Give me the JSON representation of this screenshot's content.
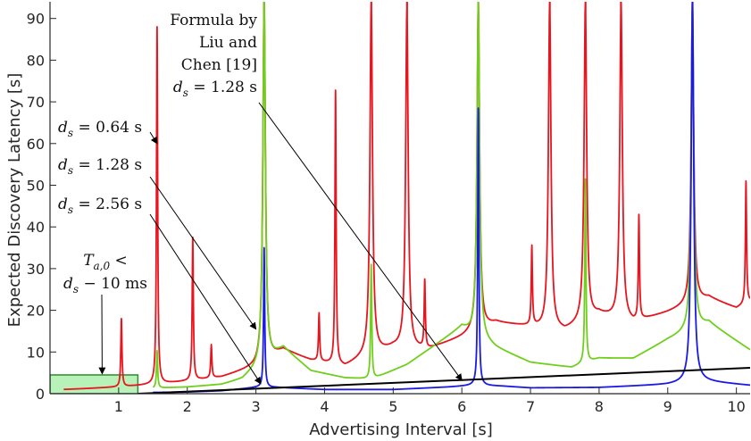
{
  "chart_data": {
    "type": "line",
    "xlabel": "Advertising Interval [s]",
    "ylabel": "Expected Discovery Latency [s]",
    "xlim": [
      0,
      10.2
    ],
    "ylim": [
      0,
      94
    ],
    "x_ticks": [
      1,
      2,
      3,
      4,
      5,
      6,
      7,
      8,
      9,
      10
    ],
    "y_ticks": [
      0,
      10,
      20,
      30,
      40,
      50,
      60,
      70,
      80,
      90
    ],
    "grid": false,
    "colors": {
      "red": "#e8141e",
      "green": "#6fcf1c",
      "blue": "#1a1ae6",
      "black": "#000000",
      "highlight_fill": "#b8f2b8",
      "highlight_stroke": "#2e8b2e"
    },
    "series": [
      {
        "color": "red",
        "base": [
          [
            0.2,
            1.0
          ],
          [
            0.5,
            1.2
          ],
          [
            1.0,
            1.6
          ],
          [
            1.5,
            2.2
          ],
          [
            2.0,
            3.0
          ],
          [
            2.5,
            4.0
          ],
          [
            3.0,
            6.5
          ],
          [
            3.4,
            10.5
          ],
          [
            3.8,
            8.0
          ],
          [
            4.3,
            6.5
          ],
          [
            4.6,
            9.0
          ],
          [
            5.0,
            11.0
          ],
          [
            5.5,
            10.5
          ],
          [
            6.0,
            13.5
          ],
          [
            6.5,
            17.0
          ],
          [
            7.0,
            16.0
          ],
          [
            7.5,
            15.0
          ],
          [
            8.0,
            19.0
          ],
          [
            8.5,
            17.0
          ],
          [
            9.0,
            19.5
          ],
          [
            9.6,
            23.0
          ],
          [
            10.0,
            20.5
          ],
          [
            10.2,
            22.0
          ]
        ],
        "spikes": [
          [
            1.04,
            18.0
          ],
          [
            1.56,
            88.0
          ],
          [
            2.08,
            37.5
          ],
          [
            2.35,
            11.7
          ],
          [
            3.12,
            94.0
          ],
          [
            3.92,
            19.3
          ],
          [
            4.16,
            72.8
          ],
          [
            4.68,
            94.0
          ],
          [
            5.2,
            92.5
          ],
          [
            5.46,
            27.5
          ],
          [
            6.24,
            94.0
          ],
          [
            7.02,
            35.3
          ],
          [
            7.28,
            94.0
          ],
          [
            7.8,
            94.0
          ],
          [
            8.32,
            94.0
          ],
          [
            8.58,
            43.0
          ],
          [
            9.36,
            94.0
          ],
          [
            10.14,
            51.0
          ]
        ]
      },
      {
        "color": "green",
        "base": [
          [
            1.5,
            1.3
          ],
          [
            2.0,
            1.6
          ],
          [
            2.5,
            2.2
          ],
          [
            2.8,
            3.5
          ],
          [
            3.4,
            11.0
          ],
          [
            3.8,
            5.5
          ],
          [
            4.3,
            3.8
          ],
          [
            4.7,
            3.5
          ],
          [
            5.2,
            7.0
          ],
          [
            6.0,
            16.0
          ],
          [
            6.5,
            11.0
          ],
          [
            7.0,
            7.5
          ],
          [
            7.6,
            6.3
          ],
          [
            8.0,
            8.5
          ],
          [
            8.5,
            8.5
          ],
          [
            9.0,
            13.0
          ],
          [
            9.6,
            17.0
          ],
          [
            10.2,
            10.5
          ]
        ],
        "spikes": [
          [
            1.56,
            10.3
          ],
          [
            3.12,
            94.0
          ],
          [
            4.68,
            31.0
          ],
          [
            6.24,
            94.0
          ],
          [
            7.8,
            51.5
          ],
          [
            9.36,
            94.0
          ]
        ]
      },
      {
        "color": "blue",
        "base": [
          [
            1.5,
            0.3
          ],
          [
            2.0,
            0.4
          ],
          [
            2.5,
            0.7
          ],
          [
            3.0,
            1.5
          ],
          [
            3.3,
            1.5
          ],
          [
            4.0,
            1.0
          ],
          [
            5.0,
            1.0
          ],
          [
            5.8,
            1.6
          ],
          [
            6.2,
            2.0
          ],
          [
            6.6,
            1.8
          ],
          [
            7.0,
            1.4
          ],
          [
            8.0,
            1.5
          ],
          [
            9.0,
            2.2
          ],
          [
            9.5,
            3.0
          ],
          [
            10.2,
            2.0
          ]
        ],
        "spikes": [
          [
            3.12,
            35.0
          ],
          [
            6.24,
            68.5
          ],
          [
            9.36,
            94.0
          ]
        ]
      },
      {
        "name": "Formula by Liu and Chen [19]",
        "color": "black",
        "points": [
          [
            1.28,
            0.0
          ],
          [
            10.2,
            6.2
          ]
        ]
      }
    ],
    "highlight_region": {
      "x": [
        0.0,
        1.28
      ],
      "y": [
        0.0,
        4.5
      ]
    },
    "annotations": [
      {
        "lines": [
          "Formula by",
          "Liu and",
          "Chen [19]",
          "d_s = 1.28 s"
        ],
        "target": [
          6.0,
          3.2
        ]
      },
      {
        "lines": [
          "d_s = 0.64 s"
        ],
        "target": [
          1.56,
          60.0
        ]
      },
      {
        "lines": [
          "d_s = 1.28 s"
        ],
        "target": [
          3.0,
          15.5
        ]
      },
      {
        "lines": [
          "d_s = 2.56 s"
        ],
        "target": [
          3.07,
          2.4
        ]
      },
      {
        "lines": [
          "T_a,0 <",
          "d_s − 10 ms"
        ],
        "target": [
          0.76,
          4.8
        ]
      }
    ]
  }
}
